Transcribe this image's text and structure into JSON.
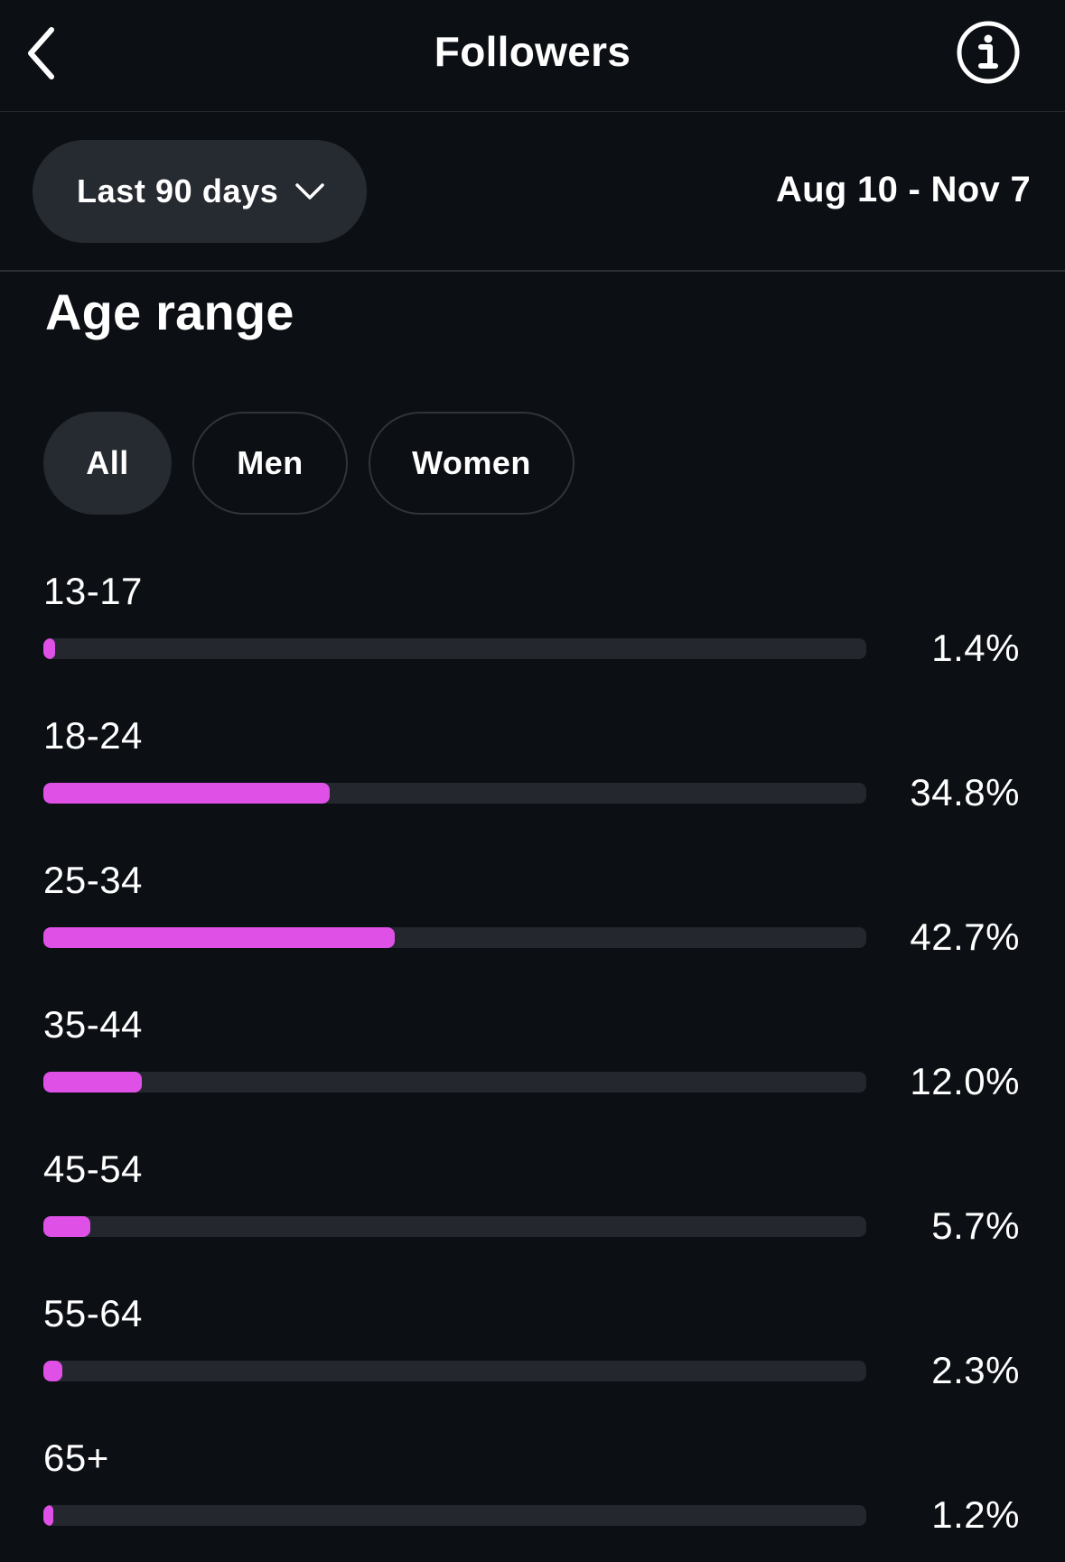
{
  "header": {
    "title": "Followers",
    "back_icon": "chevron-left-icon",
    "info_icon": "info-circle-icon"
  },
  "filters": {
    "period_label": "Last 90 days",
    "period_icon": "chevron-down-icon",
    "date_range": "Aug 10 - Nov 7"
  },
  "section": {
    "title": "Age range",
    "tabs": [
      {
        "label": "All",
        "active": true
      },
      {
        "label": "Men",
        "active": false
      },
      {
        "label": "Women",
        "active": false
      }
    ]
  },
  "colors": {
    "background": "#0c0f14",
    "bar_fill": "#df50e6",
    "bar_track": "#24272e",
    "chip_background": "#262a31"
  },
  "age_groups": [
    {
      "label": "13-17",
      "value": 1.4,
      "value_label": "1.4%"
    },
    {
      "label": "18-24",
      "value": 34.8,
      "value_label": "34.8%"
    },
    {
      "label": "25-34",
      "value": 42.7,
      "value_label": "42.7%"
    },
    {
      "label": "35-44",
      "value": 12.0,
      "value_label": "12.0%"
    },
    {
      "label": "45-54",
      "value": 5.7,
      "value_label": "5.7%"
    },
    {
      "label": "55-64",
      "value": 2.3,
      "value_label": "2.3%"
    },
    {
      "label": "65+",
      "value": 1.2,
      "value_label": "1.2%"
    }
  ]
}
